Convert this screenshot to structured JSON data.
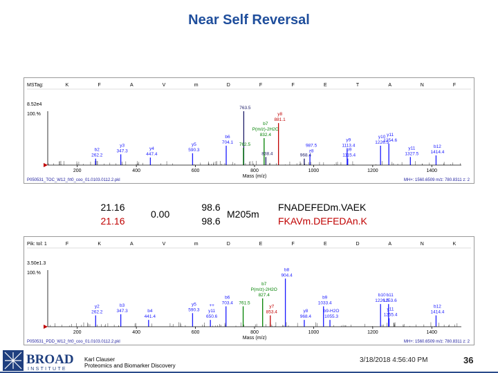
{
  "slide": {
    "title": "Near Self Reversal",
    "author_line1": "Karl Clauser",
    "author_line2": "Proteomics and Biomarker Discovery",
    "date": "3/18/2018 4:56:40 PM",
    "page": "36",
    "logo_word": "BROAD",
    "logo_sub": "INSTITUTE"
  },
  "comparison": {
    "score_a_1": "21.16",
    "score_a_2": "21.16",
    "delta": "0.00",
    "score_b_1": "98.6",
    "score_b_2": "98.6",
    "mod": "M205m",
    "seq_1": "FNADEFEDm.VAEK",
    "seq_2": "FKAVm.DEFEDAn.K"
  },
  "colors": {
    "title": "#1f4e9c",
    "red": "#c00000",
    "blue": "#1a1aff",
    "green": "#008000",
    "peak_dark": "#1a1a66"
  },
  "chart_data": [
    {
      "type": "bar",
      "panel": "top",
      "msms_tag_label": "MSTag:",
      "residues": [
        "K",
        "F",
        "A",
        "V",
        "m",
        "D",
        "F",
        "F",
        "E",
        "T",
        "A",
        "N",
        "F"
      ],
      "y_max_label": "8.52e4",
      "y_pct_label": "100.%",
      "xlabel": "Mass (m/z)",
      "xticks": [
        "200",
        "400",
        "600",
        "800",
        "1000",
        "1200",
        "1400"
      ],
      "xlim": [
        100,
        1500
      ],
      "ylim": [
        0,
        100
      ],
      "footer_left": "P050531_TOC_W12_frt0_coo_01.0103.0112.2.pkl",
      "footer_right": "MH+: 1560.6509  m/z: 780.8311  z: 2",
      "peaks": [
        {
          "mz": 262.2,
          "rel": 12,
          "labels": [
            "b2",
            "262.2"
          ],
          "color": "blue"
        },
        {
          "mz": 347.3,
          "rel": 20,
          "labels": [
            "y3",
            "347.3"
          ],
          "color": "blue"
        },
        {
          "mz": 447.4,
          "rel": 14,
          "labels": [
            "y4",
            "447.4"
          ],
          "color": "blue"
        },
        {
          "mz": 590.3,
          "rel": 22,
          "labels": [
            "y5",
            "590.3"
          ],
          "color": "blue"
        },
        {
          "mz": 704.1,
          "rel": 36,
          "labels": [
            "b6",
            "704.1"
          ],
          "color": "blue"
        },
        {
          "mz": 763.5,
          "rel": 100,
          "labels": [
            "763.5"
          ],
          "color": "dark"
        },
        {
          "mz": 762.5,
          "rel": 32,
          "labels": [
            "762.5"
          ],
          "color": "green"
        },
        {
          "mz": 832.4,
          "rel": 50,
          "labels": [
            "b7",
            "P(m/z)-2H2O",
            "832.4"
          ],
          "color": "green"
        },
        {
          "mz": 838.4,
          "rel": 15,
          "labels": [
            "838.4"
          ],
          "color": "dark"
        },
        {
          "mz": 881.1,
          "rel": 78,
          "labels": [
            "y8",
            "881.1"
          ],
          "color": "red"
        },
        {
          "mz": 968.4,
          "rel": 12,
          "labels": [
            "968.4"
          ],
          "color": "dark"
        },
        {
          "mz": 987.5,
          "rel": 20,
          "labels": [
            "987.5",
            "z8"
          ],
          "color": "blue"
        },
        {
          "mz": 1113.4,
          "rel": 30,
          "labels": [
            "y9",
            "1113.4"
          ],
          "color": "blue"
        },
        {
          "mz": 1115.4,
          "rel": 12,
          "labels": [
            "b9",
            "1115.4"
          ],
          "color": "blue"
        },
        {
          "mz": 1226.5,
          "rel": 36,
          "labels": [
            "y10",
            "1226.5"
          ],
          "color": "blue"
        },
        {
          "mz": 1254.6,
          "rel": 40,
          "labels": [
            "y11",
            "1254.6"
          ],
          "color": "blue"
        },
        {
          "mz": 1327.5,
          "rel": 15,
          "labels": [
            "y11",
            "1327.5"
          ],
          "color": "blue"
        },
        {
          "mz": 1414.4,
          "rel": 18,
          "labels": [
            "b12",
            "1414.4"
          ],
          "color": "blue"
        }
      ]
    },
    {
      "type": "bar",
      "panel": "bottom",
      "msms_tag_label": "Pik: tol: 1",
      "residues": [
        "F",
        "K",
        "A",
        "V",
        "m",
        "D",
        "E",
        "F",
        "E",
        "D",
        "A",
        "N",
        "K"
      ],
      "y_max_label": "3.50e1.3",
      "y_pct_label": "100.%",
      "xlabel": "Mass (m/z)",
      "xticks": [
        "200",
        "400",
        "600",
        "800",
        "1000",
        "1200",
        "1400"
      ],
      "xlim": [
        100,
        1500
      ],
      "ylim": [
        0,
        100
      ],
      "footer_left": "P050531_PDD_W12_frt0_coo_01.0103.0112.2.pkl",
      "footer_right": "MH+: 1560.6509  m/z: 780.8311  z: 2",
      "peaks": [
        {
          "mz": 262.2,
          "rel": 20,
          "labels": [
            "y2",
            "262.2"
          ],
          "color": "blue"
        },
        {
          "mz": 347.3,
          "rel": 22,
          "labels": [
            "b3",
            "347.3"
          ],
          "color": "blue"
        },
        {
          "mz": 441.4,
          "rel": 12,
          "labels": [
            "b4",
            "441.4"
          ],
          "color": "blue"
        },
        {
          "mz": 590.3,
          "rel": 24,
          "labels": [
            "y5",
            "590.3"
          ],
          "color": "blue"
        },
        {
          "mz": 650.6,
          "rel": 12,
          "labels": [
            "++",
            "y11",
            "650.6"
          ],
          "color": "blue"
        },
        {
          "mz": 703.4,
          "rel": 36,
          "labels": [
            "b6",
            "703.4"
          ],
          "color": "blue"
        },
        {
          "mz": 761.5,
          "rel": 36,
          "labels": [
            "761.5"
          ],
          "color": "green"
        },
        {
          "mz": 827.4,
          "rel": 50,
          "labels": [
            "b7",
            "P(m/z)-2H2O",
            "827.4"
          ],
          "color": "green"
        },
        {
          "mz": 853.4,
          "rel": 20,
          "labels": [
            "y7",
            "853.4"
          ],
          "color": "red"
        },
        {
          "mz": 904.4,
          "rel": 85,
          "labels": [
            "b8",
            "904.4"
          ],
          "color": "blue"
        },
        {
          "mz": 968.4,
          "rel": 12,
          "labels": [
            "y8",
            "968.4"
          ],
          "color": "blue"
        },
        {
          "mz": 1033.4,
          "rel": 36,
          "labels": [
            "b9",
            "1033.4"
          ],
          "color": "blue"
        },
        {
          "mz": 1055.3,
          "rel": 12,
          "labels": [
            "b9-H2O",
            "1055.3"
          ],
          "color": "blue"
        },
        {
          "mz": 1226.5,
          "rel": 40,
          "labels": [
            "b10",
            "1226.5"
          ],
          "color": "blue"
        },
        {
          "mz": 1253.6,
          "rel": 40,
          "labels": [
            "b11",
            "1253.6"
          ],
          "color": "blue"
        },
        {
          "mz": 1255.4,
          "rel": 15,
          "labels": [
            "y11",
            "1255.4"
          ],
          "color": "blue"
        },
        {
          "mz": 1414.4,
          "rel": 20,
          "labels": [
            "b12",
            "1414.4"
          ],
          "color": "blue"
        }
      ]
    }
  ]
}
